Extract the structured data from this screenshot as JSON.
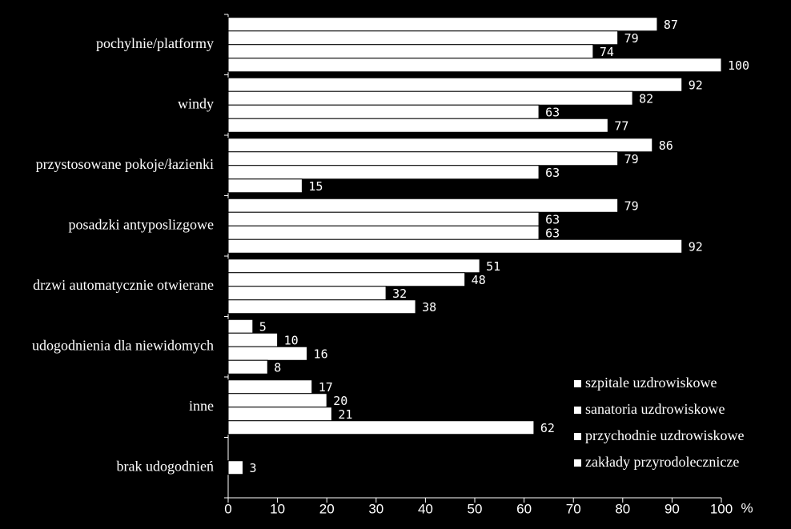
{
  "chart_data": {
    "type": "bar",
    "orientation": "horizontal",
    "categories": [
      "pochylnie/platformy",
      "windy",
      "przystosowane pokoje/łazienki",
      "posadzki antyposlizgowe",
      "drzwi automatycznie otwierane",
      "udogodnienia dla niewidomych",
      "inne",
      "brak udogodnień"
    ],
    "series": [
      {
        "name": "szpitale uzdrowiskowe",
        "color": "#ffffff",
        "values": [
          87,
          92,
          86,
          79,
          51,
          5,
          17,
          3
        ]
      },
      {
        "name": "sanatoria uzdrowiskowe",
        "color": "#ffffff",
        "values": [
          79,
          82,
          79,
          63,
          48,
          10,
          20,
          null
        ]
      },
      {
        "name": "przychodnie uzdrowiskowe",
        "color": "#ffffff",
        "values": [
          74,
          63,
          63,
          63,
          32,
          16,
          21,
          null
        ]
      },
      {
        "name": "zakłady przyrodolecznicze",
        "color": "#ffffff",
        "values": [
          100,
          77,
          15,
          92,
          38,
          8,
          62,
          null
        ]
      }
    ],
    "xlabel": "%",
    "xlim": [
      0,
      100
    ],
    "xticks": [
      0,
      10,
      20,
      30,
      40,
      50,
      60,
      70,
      80,
      90,
      100
    ],
    "legend": "lower-right"
  }
}
